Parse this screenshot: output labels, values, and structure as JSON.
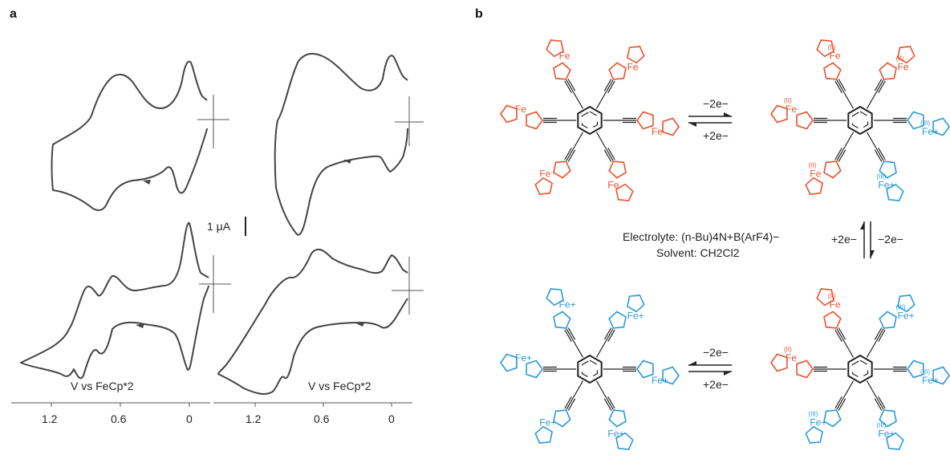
{
  "figure": {
    "panel_a_label": "a",
    "panel_b_label": "b"
  },
  "panel_a": {
    "scale_bar_label": "1 μA",
    "voltammograms": [
      {
        "id": "top-left",
        "annotation": ""
      },
      {
        "id": "top-right",
        "annotation": ""
      },
      {
        "id": "bottom-left",
        "annotation": "V vs FeCp*2"
      },
      {
        "id": "bottom-right",
        "annotation": "V vs FeCp*2"
      }
    ],
    "axes": [
      {
        "ticks": [
          "1.2",
          "0.6",
          "0"
        ]
      },
      {
        "ticks": [
          "1.2",
          "0.6",
          "0"
        ]
      }
    ]
  },
  "panel_b": {
    "colors": {
      "fe_ii": "#e8522e",
      "fe_iii": "#2a9ad8",
      "skeleton": "#222222"
    },
    "molecules": [
      {
        "position": "top-left",
        "states": [
          "II",
          "II",
          "II",
          "II",
          "II",
          "II"
        ]
      },
      {
        "position": "top-right",
        "states": [
          "II",
          "II",
          "III",
          "III",
          "II",
          "II"
        ]
      },
      {
        "position": "bottom-right",
        "states": [
          "II",
          "III",
          "III",
          "III",
          "III",
          "II"
        ]
      },
      {
        "position": "bottom-left",
        "states": [
          "III",
          "III",
          "III",
          "III",
          "III",
          "III"
        ]
      }
    ],
    "fe_text": "Fe",
    "fe_plus_text": "Fe+",
    "ox_ii_text": "(II)",
    "ox_iii_text": "(III)",
    "arrows_top": {
      "upper": "−2e−",
      "lower": "+2e−"
    },
    "arrows_right": {
      "left": "+2e−",
      "right": "−2e−"
    },
    "arrows_bottom": {
      "upper": "−2e−",
      "lower": "+2e−"
    },
    "electrolyte": "Electrolyte: (n-Bu)4N+B(ArF4)−",
    "solvent": "Solvent: CH2Cl2"
  }
}
